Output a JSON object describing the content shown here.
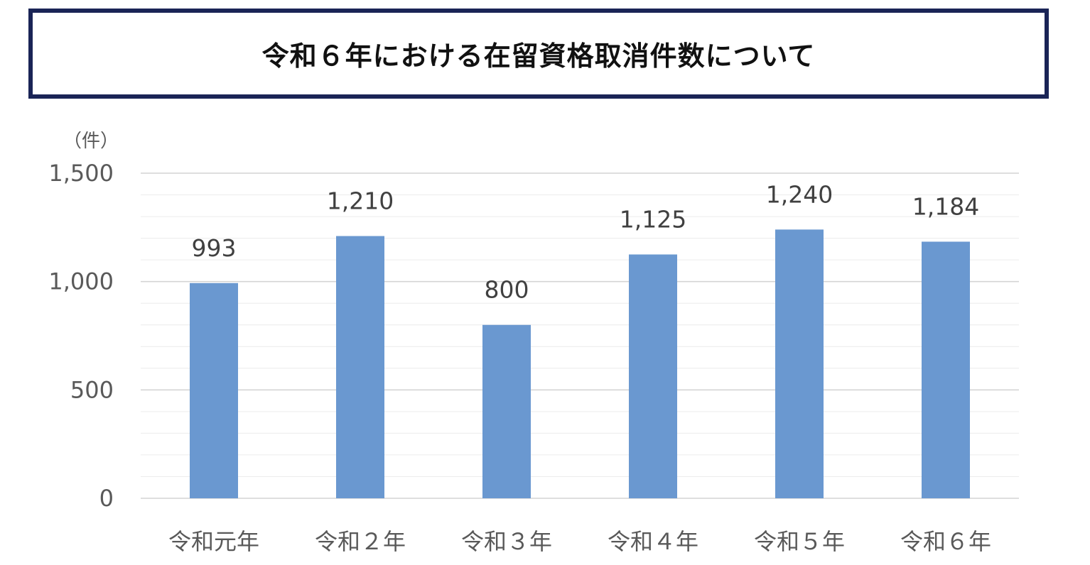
{
  "title": "令和６年における在留資格取消件数について",
  "chart_data": {
    "type": "bar",
    "unit_label": "（件）",
    "categories": [
      "令和元年",
      "令和２年",
      "令和３年",
      "令和４年",
      "令和５年",
      "令和６年"
    ],
    "values": [
      993,
      1210,
      800,
      1125,
      1240,
      1184
    ],
    "data_labels": [
      "993",
      "1,210",
      "800",
      "1,125",
      "1,240",
      "1,184"
    ],
    "yticks": [
      0,
      500,
      1000,
      1500
    ],
    "ytick_labels": [
      "0",
      "500",
      "1,000",
      "1,500"
    ],
    "ylim": [
      0,
      1500
    ],
    "minor_grid_step": 100,
    "bar_color": "#6a98d0",
    "grid": true,
    "legend": "none"
  }
}
